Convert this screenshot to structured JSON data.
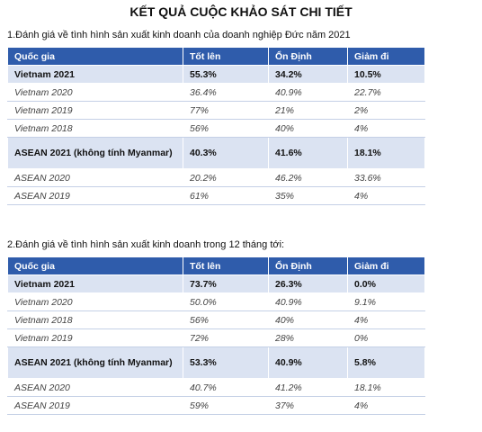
{
  "title": "KẾT QUẢ CUỘC KHẢO SÁT CHI TIẾT",
  "section1": {
    "heading": "1.Đánh giá về tình hình sản xuất kinh doanh của doanh nghiệp Đức năm 2021",
    "columns": [
      "Quốc gia",
      "Tốt lên",
      "Ổn Định",
      "Giảm đi"
    ],
    "rows": [
      [
        "Vietnam 2021",
        "55.3%",
        "34.2%",
        "10.5%"
      ],
      [
        "Vietnam 2020",
        "36.4%",
        "40.9%",
        "22.7%"
      ],
      [
        "Vietnam 2019",
        "77%",
        "21%",
        "2%"
      ],
      [
        "Vietnam 2018",
        "56%",
        "40%",
        "4%"
      ],
      [
        "ASEAN 2021 (không tính Myanmar)",
        "40.3%",
        "41.6%",
        "18.1%"
      ],
      [
        "ASEAN 2020",
        "20.2%",
        "46.2%",
        "33.6%"
      ],
      [
        "ASEAN 2019",
        "61%",
        "35%",
        "4%"
      ]
    ]
  },
  "section2": {
    "heading": "2.Đánh giá về tình hình sản xuất kinh doanh trong 12 tháng tới:",
    "columns": [
      "Quốc gia",
      "Tốt lên",
      "Ổn Định",
      "Giảm đi"
    ],
    "rows": [
      [
        "Vietnam 2021",
        "73.7%",
        "26.3%",
        "0.0%"
      ],
      [
        "Vietnam 2020",
        "50.0%",
        "40.9%",
        "9.1%"
      ],
      [
        "Vietnam 2018",
        "56%",
        "40%",
        "4%"
      ],
      [
        "Vietnam 2019",
        "72%",
        "28%",
        "0%"
      ],
      [
        "ASEAN 2021 (không tính Myanmar)",
        "53.3%",
        "40.9%",
        "5.8%"
      ],
      [
        "ASEAN 2020",
        "40.7%",
        "41.2%",
        "18.1%"
      ],
      [
        "ASEAN 2019",
        "59%",
        "37%",
        "4%"
      ]
    ]
  }
}
